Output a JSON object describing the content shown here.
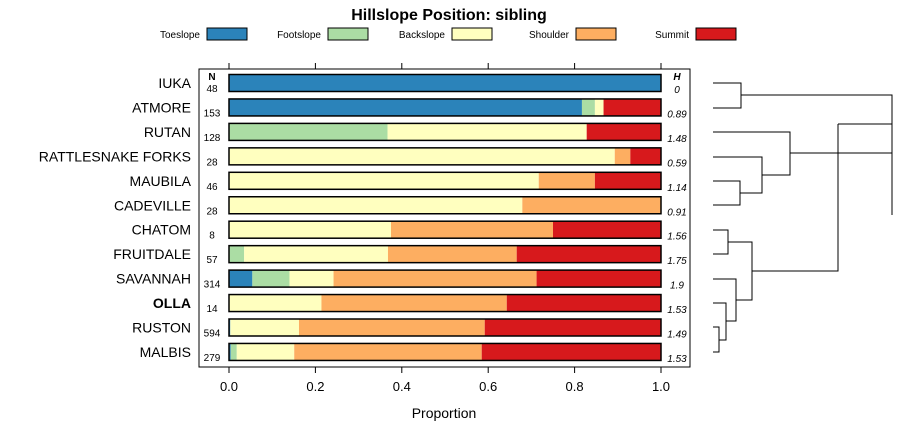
{
  "chart_data": {
    "type": "bar",
    "orientation": "horizontal",
    "stacked": true,
    "title": "Hillslope Position: sibling",
    "xlabel": "Proportion",
    "ylabel": "",
    "xlim": [
      0,
      1
    ],
    "xticks": [
      "0.0",
      "0.2",
      "0.4",
      "0.6",
      "0.8",
      "1.0"
    ],
    "n_header": "N",
    "h_header": "H",
    "legend_position": "top",
    "series": [
      {
        "name": "Toeslope",
        "color": "#2b83ba"
      },
      {
        "name": "Footslope",
        "color": "#abdda4"
      },
      {
        "name": "Backslope",
        "color": "#ffffbf"
      },
      {
        "name": "Shoulder",
        "color": "#fdae61"
      },
      {
        "name": "Summit",
        "color": "#d7191c"
      }
    ],
    "rows": [
      {
        "label": "IUKA",
        "bold": false,
        "n": "48",
        "h": "0",
        "values": [
          1.0,
          0,
          0,
          0,
          0
        ]
      },
      {
        "label": "ATMORE",
        "bold": false,
        "n": "153",
        "h": "0.89",
        "values": [
          0.817,
          0.03,
          0.02,
          0,
          0.133
        ]
      },
      {
        "label": "RUTAN",
        "bold": false,
        "n": "128",
        "h": "1.48",
        "values": [
          0,
          0.367,
          0.461,
          0,
          0.172
        ]
      },
      {
        "label": "RATTLESNAKE FORKS",
        "bold": false,
        "n": "28",
        "h": "0.59",
        "values": [
          0,
          0,
          0.893,
          0.036,
          0.071
        ]
      },
      {
        "label": "MAUBILA",
        "bold": false,
        "n": "46",
        "h": "1.14",
        "values": [
          0,
          0,
          0.717,
          0.13,
          0.153
        ]
      },
      {
        "label": "CADEVILLE",
        "bold": false,
        "n": "28",
        "h": "0.91",
        "values": [
          0,
          0,
          0.679,
          0.321,
          0
        ]
      },
      {
        "label": "CHATOM",
        "bold": false,
        "n": "8",
        "h": "1.56",
        "values": [
          0,
          0,
          0.375,
          0.375,
          0.25
        ]
      },
      {
        "label": "FRUITDALE",
        "bold": false,
        "n": "57",
        "h": "1.75",
        "values": [
          0,
          0.035,
          0.333,
          0.298,
          0.334
        ]
      },
      {
        "label": "SAVANNAH",
        "bold": false,
        "n": "314",
        "h": "1.9",
        "values": [
          0.054,
          0.086,
          0.102,
          0.47,
          0.288
        ]
      },
      {
        "label": "OLLA",
        "bold": true,
        "n": "14",
        "h": "1.53",
        "values": [
          0,
          0,
          0.214,
          0.429,
          0.357
        ]
      },
      {
        "label": "RUSTON",
        "bold": false,
        "n": "594",
        "h": "1.49",
        "values": [
          0.003,
          0,
          0.159,
          0.43,
          0.408
        ]
      },
      {
        "label": "MALBIS",
        "bold": false,
        "n": "279",
        "h": "1.53",
        "values": [
          0.004,
          0.014,
          0.133,
          0.434,
          0.415
        ]
      }
    ]
  }
}
